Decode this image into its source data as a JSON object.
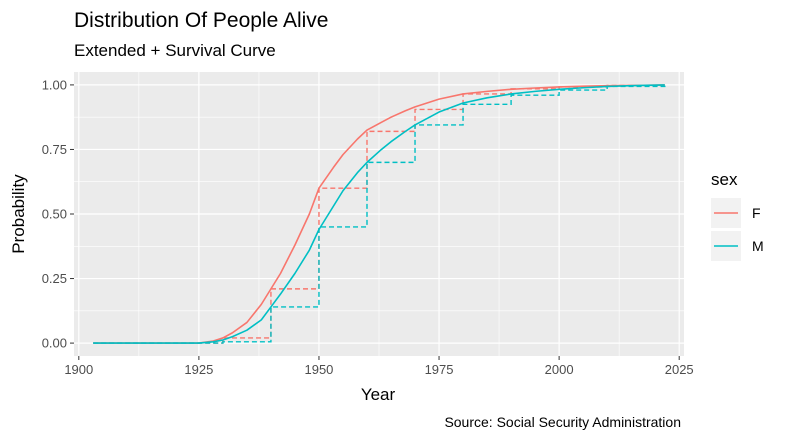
{
  "chart_data": {
    "type": "line",
    "title": "Distribution Of People Alive",
    "subtitle": "Extended + Survival Curve",
    "xlabel": "Year",
    "ylabel": "Probability",
    "caption": "Source: Social Security Administration",
    "xlim": [
      1899,
      2026
    ],
    "ylim": [
      -0.05,
      1.05
    ],
    "x_ticks": [
      1900,
      1925,
      1950,
      1975,
      2000,
      2025
    ],
    "y_ticks": [
      0.0,
      0.25,
      0.5,
      0.75,
      1.0
    ],
    "y_tick_labels": [
      "0.00",
      "0.25",
      "0.50",
      "0.75",
      "1.00"
    ],
    "grid": true,
    "legend": {
      "title": "sex",
      "position": "right",
      "entries": [
        "F",
        "M"
      ]
    },
    "series": [
      {
        "name": "F",
        "color": "#F8766D",
        "smooth": {
          "x": [
            1903,
            1915,
            1920,
            1925,
            1928,
            1930,
            1932,
            1935,
            1938,
            1940,
            1942,
            1945,
            1948,
            1950,
            1953,
            1955,
            1958,
            1960,
            1963,
            1965,
            1968,
            1970,
            1975,
            1980,
            1985,
            1990,
            1995,
            2000,
            2005,
            2010,
            2015,
            2022
          ],
          "y": [
            0.0,
            0.0,
            0.0,
            0.0,
            0.008,
            0.02,
            0.04,
            0.08,
            0.15,
            0.21,
            0.27,
            0.38,
            0.5,
            0.6,
            0.68,
            0.73,
            0.79,
            0.825,
            0.855,
            0.875,
            0.9,
            0.915,
            0.945,
            0.965,
            0.975,
            0.983,
            0.988,
            0.992,
            0.995,
            0.997,
            0.998,
            1.0
          ]
        },
        "steps": {
          "x": [
            1903,
            1930,
            1940,
            1950,
            1960,
            1970,
            1980,
            1990,
            2000,
            2010,
            2022
          ],
          "y": [
            0.0,
            0.02,
            0.21,
            0.6,
            0.82,
            0.905,
            0.965,
            0.985,
            0.992,
            0.998,
            1.0
          ]
        }
      },
      {
        "name": "M",
        "color": "#00BFC4",
        "smooth": {
          "x": [
            1903,
            1915,
            1920,
            1925,
            1928,
            1930,
            1932,
            1935,
            1938,
            1940,
            1942,
            1945,
            1948,
            1950,
            1953,
            1955,
            1958,
            1960,
            1963,
            1965,
            1968,
            1970,
            1975,
            1980,
            1985,
            1990,
            1995,
            2000,
            2005,
            2010,
            2015,
            2022
          ],
          "y": [
            0.0,
            0.0,
            0.0,
            0.0,
            0.005,
            0.012,
            0.025,
            0.05,
            0.09,
            0.14,
            0.19,
            0.27,
            0.36,
            0.44,
            0.53,
            0.59,
            0.66,
            0.7,
            0.75,
            0.78,
            0.82,
            0.845,
            0.895,
            0.93,
            0.95,
            0.965,
            0.975,
            0.983,
            0.989,
            0.994,
            0.997,
            1.0
          ]
        },
        "steps": {
          "x": [
            1903,
            1930,
            1940,
            1950,
            1960,
            1970,
            1980,
            1990,
            2000,
            2010,
            2022
          ],
          "y": [
            0.0,
            0.005,
            0.14,
            0.45,
            0.7,
            0.845,
            0.925,
            0.96,
            0.98,
            0.994,
            1.0
          ]
        }
      }
    ]
  }
}
